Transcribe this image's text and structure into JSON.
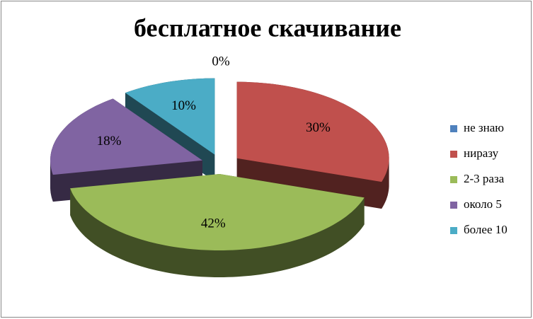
{
  "chart_data": {
    "type": "pie3d",
    "title": "бесплатное скачивание",
    "categories": [
      "не знаю",
      "ниразу",
      "2-3 раза",
      "около 5",
      "более 10"
    ],
    "values": [
      0,
      30,
      42,
      18,
      10
    ],
    "value_labels": [
      "0%",
      "30%",
      "42%",
      "18%",
      "10%"
    ],
    "colors": [
      "#4f81bd",
      "#c0504d",
      "#9bbb59",
      "#8064a2",
      "#4bacc6"
    ],
    "legend": "right"
  }
}
